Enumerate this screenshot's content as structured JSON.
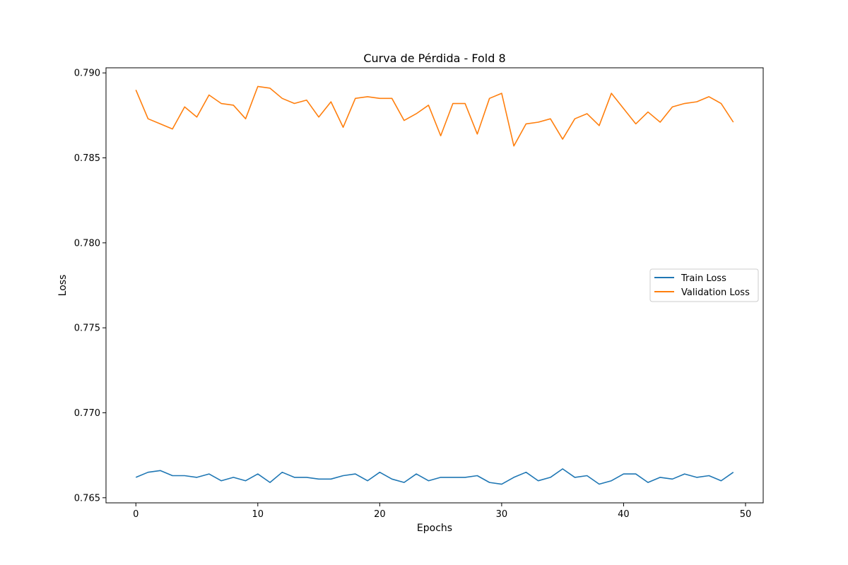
{
  "chart_data": {
    "type": "line",
    "title": "Curva de Pérdida - Fold 8",
    "xlabel": "Epochs",
    "ylabel": "Loss",
    "xlim": [
      -2.45,
      51.45
    ],
    "ylim": [
      0.7647,
      0.7903
    ],
    "x_ticks": [
      0,
      10,
      20,
      30,
      40,
      50
    ],
    "y_ticks": [
      0.765,
      0.77,
      0.775,
      0.78,
      0.785,
      0.79
    ],
    "y_tick_labels": [
      "0.765",
      "0.770",
      "0.775",
      "0.780",
      "0.785",
      "0.790"
    ],
    "x_tick_labels": [
      "0",
      "10",
      "20",
      "30",
      "40",
      "50"
    ],
    "grid": false,
    "legend_position": "center-right",
    "x": [
      0,
      1,
      2,
      3,
      4,
      5,
      6,
      7,
      8,
      9,
      10,
      11,
      12,
      13,
      14,
      15,
      16,
      17,
      18,
      19,
      20,
      21,
      22,
      23,
      24,
      25,
      26,
      27,
      28,
      29,
      30,
      31,
      32,
      33,
      34,
      35,
      36,
      37,
      38,
      39,
      40,
      41,
      42,
      43,
      44,
      45,
      46,
      47,
      48,
      49
    ],
    "series": [
      {
        "name": "Train Loss",
        "color": "#1f77b4",
        "values": [
          0.7662,
          0.7665,
          0.7666,
          0.7663,
          0.7663,
          0.7662,
          0.7664,
          0.766,
          0.7662,
          0.766,
          0.7664,
          0.7659,
          0.7665,
          0.7662,
          0.7662,
          0.7661,
          0.7661,
          0.7663,
          0.7664,
          0.766,
          0.7665,
          0.7661,
          0.7659,
          0.7664,
          0.766,
          0.7662,
          0.7662,
          0.7662,
          0.7663,
          0.7659,
          0.7658,
          0.7662,
          0.7665,
          0.766,
          0.7662,
          0.7667,
          0.7662,
          0.7663,
          0.7658,
          0.766,
          0.7664,
          0.7664,
          0.7659,
          0.7662,
          0.7661,
          0.7664,
          0.7662,
          0.7663,
          0.766,
          0.7665
        ]
      },
      {
        "name": "Validation Loss",
        "color": "#ff7f0e",
        "values": [
          0.789,
          0.7873,
          0.787,
          0.7867,
          0.788,
          0.7874,
          0.7887,
          0.7882,
          0.7881,
          0.7873,
          0.7892,
          0.7891,
          0.7885,
          0.7882,
          0.7884,
          0.7874,
          0.7883,
          0.7868,
          0.7885,
          0.7886,
          0.7885,
          0.7885,
          0.7872,
          0.7876,
          0.7881,
          0.7863,
          0.7882,
          0.7882,
          0.7864,
          0.7885,
          0.7888,
          0.7857,
          0.787,
          0.7871,
          0.7873,
          0.7861,
          0.7873,
          0.7876,
          0.7869,
          0.7888,
          0.7879,
          0.787,
          0.7877,
          0.7871,
          0.788,
          0.7882,
          0.7883,
          0.7886,
          0.7882,
          0.7871
        ]
      }
    ]
  }
}
